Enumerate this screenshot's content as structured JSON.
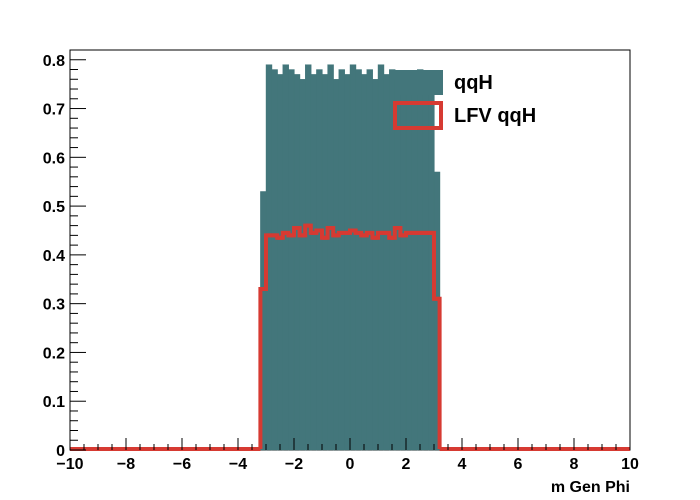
{
  "chart_data": {
    "type": "bar",
    "title": "",
    "xlabel": "m Gen Phi",
    "ylabel": "",
    "xlim": [
      -10,
      10
    ],
    "ylim": [
      0,
      0.82
    ],
    "grid": false,
    "legend_placement": "top-right",
    "x_ticks": [
      -10,
      -8,
      -6,
      -4,
      -2,
      0,
      2,
      4,
      6,
      8,
      10
    ],
    "x_tick_labels": [
      "−10",
      "−8",
      "−6",
      "−4",
      "−2",
      "0",
      "2",
      "4",
      "6",
      "8",
      "10"
    ],
    "y_ticks": [
      0,
      0.1,
      0.2,
      0.3,
      0.4,
      0.5,
      0.6,
      0.7,
      0.8
    ],
    "y_tick_labels": [
      "0",
      "0.1",
      "0.2",
      "0.3",
      "0.4",
      "0.5",
      "0.6",
      "0.7",
      "0.8"
    ],
    "x_bin_width": 0.2,
    "series": [
      {
        "name": "qqH",
        "style": "filled",
        "color": "#43767b",
        "bin_starts": [
          -3.2,
          -3.0,
          -2.8,
          -2.6,
          -2.4,
          -2.2,
          -2.0,
          -1.8,
          -1.6,
          -1.4,
          -1.2,
          -1.0,
          -0.8,
          -0.6,
          -0.4,
          -0.2,
          0.0,
          0.2,
          0.4,
          0.6,
          0.8,
          1.0,
          1.2,
          1.4,
          1.6,
          1.8,
          2.0,
          2.2,
          2.4,
          2.6,
          2.8,
          3.0
        ],
        "values": [
          0.53,
          0.79,
          0.78,
          0.77,
          0.79,
          0.78,
          0.77,
          0.76,
          0.79,
          0.77,
          0.78,
          0.77,
          0.79,
          0.76,
          0.78,
          0.77,
          0.79,
          0.78,
          0.77,
          0.78,
          0.76,
          0.79,
          0.77,
          0.78,
          0.76,
          0.77,
          0.77,
          0.76,
          0.78,
          0.77,
          0.76,
          0.57
        ]
      },
      {
        "name": "LFV qqH",
        "style": "outline",
        "color": "#d63a32",
        "bin_starts": [
          -3.2,
          -3.0,
          -2.8,
          -2.6,
          -2.4,
          -2.2,
          -2.0,
          -1.8,
          -1.6,
          -1.4,
          -1.2,
          -1.0,
          -0.8,
          -0.6,
          -0.4,
          -0.2,
          0.0,
          0.2,
          0.4,
          0.6,
          0.8,
          1.0,
          1.2,
          1.4,
          1.6,
          1.8,
          2.0,
          2.2,
          2.4,
          2.6,
          2.8,
          3.0
        ],
        "values": [
          0.33,
          0.44,
          0.44,
          0.435,
          0.445,
          0.44,
          0.455,
          0.44,
          0.46,
          0.445,
          0.45,
          0.435,
          0.455,
          0.44,
          0.445,
          0.445,
          0.45,
          0.445,
          0.44,
          0.445,
          0.435,
          0.445,
          0.445,
          0.435,
          0.455,
          0.44,
          0.445,
          0.445,
          0.445,
          0.445,
          0.445,
          0.31
        ]
      }
    ]
  }
}
